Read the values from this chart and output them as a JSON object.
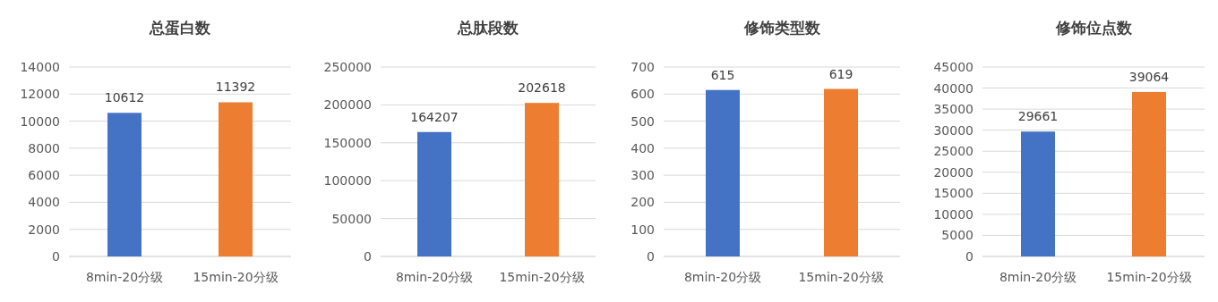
{
  "chart_data": [
    {
      "type": "bar",
      "title": "总蛋白数",
      "categories": [
        "8min-20分级",
        "15min-20分级"
      ],
      "values": [
        10612,
        11392
      ],
      "colors": [
        "#4472c4",
        "#ed7d31"
      ],
      "ylim": [
        0,
        14000
      ],
      "yticks": [
        0,
        2000,
        4000,
        6000,
        8000,
        10000,
        12000,
        14000
      ],
      "grid": "y",
      "data_labels": true
    },
    {
      "type": "bar",
      "title": "总肽段数",
      "categories": [
        "8min-20分级",
        "15min-20分级"
      ],
      "values": [
        164207,
        202618
      ],
      "colors": [
        "#4472c4",
        "#ed7d31"
      ],
      "ylim": [
        0,
        250000
      ],
      "yticks": [
        0,
        50000,
        100000,
        150000,
        200000,
        250000
      ],
      "grid": "y",
      "data_labels": true
    },
    {
      "type": "bar",
      "title": "修饰类型数",
      "categories": [
        "8min-20分级",
        "15min-20分级"
      ],
      "values": [
        615,
        619
      ],
      "colors": [
        "#4472c4",
        "#ed7d31"
      ],
      "ylim": [
        0,
        700
      ],
      "yticks": [
        0,
        100,
        200,
        300,
        400,
        500,
        600,
        700
      ],
      "grid": "y",
      "data_labels": true
    },
    {
      "type": "bar",
      "title": "修饰位点数",
      "categories": [
        "8min-20分级",
        "15min-20分级"
      ],
      "values": [
        29661,
        39064
      ],
      "colors": [
        "#4472c4",
        "#ed7d31"
      ],
      "ylim": [
        0,
        45000
      ],
      "yticks": [
        0,
        5000,
        10000,
        15000,
        20000,
        25000,
        30000,
        35000,
        40000,
        45000
      ],
      "grid": "y",
      "data_labels": true
    }
  ]
}
